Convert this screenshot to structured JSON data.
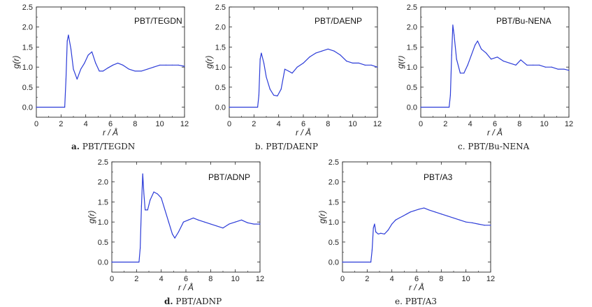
{
  "chart_data": [
    {
      "type": "line",
      "panel_title": "PBT/TEGDN",
      "caption_letter": "a.",
      "caption_text": "PBT/TEGDN",
      "xlabel": "r / Å",
      "ylabel": "g(r)",
      "xlim": [
        0,
        12
      ],
      "ylim": [
        -0.25,
        2.5
      ],
      "xticks": [
        "0",
        "2",
        "4",
        "6",
        "8",
        "10",
        "12"
      ],
      "yticks": [
        "0.0",
        "0.5",
        "1.0",
        "1.5",
        "2.0",
        "2.5"
      ],
      "color": "#2b3bd8",
      "x": [
        0,
        2.3,
        2.4,
        2.5,
        2.6,
        2.8,
        3.0,
        3.3,
        3.6,
        3.9,
        4.2,
        4.5,
        4.8,
        5.1,
        5.4,
        5.8,
        6.2,
        6.6,
        7.0,
        7.5,
        8.0,
        8.5,
        9.0,
        9.5,
        10.0,
        10.5,
        11.0,
        11.5,
        12.0
      ],
      "y": [
        0,
        0,
        0.7,
        1.65,
        1.8,
        1.45,
        0.95,
        0.7,
        0.95,
        1.1,
        1.3,
        1.38,
        1.1,
        0.9,
        0.9,
        0.98,
        1.05,
        1.1,
        1.05,
        0.95,
        0.9,
        0.9,
        0.95,
        1.0,
        1.05,
        1.05,
        1.05,
        1.05,
        1.02
      ]
    },
    {
      "type": "line",
      "panel_title": "PBT/DAENP",
      "caption_letter": "b.",
      "caption_text": "PBT/DAENP",
      "xlabel": "r / Å",
      "ylabel": "g(r)",
      "xlim": [
        0,
        12
      ],
      "ylim": [
        -0.25,
        2.5
      ],
      "xticks": [
        "0",
        "2",
        "4",
        "6",
        "8",
        "10",
        "12"
      ],
      "yticks": [
        "0.0",
        "0.5",
        "1.0",
        "1.5",
        "2.0",
        "2.5"
      ],
      "color": "#2b3bd8",
      "x": [
        0,
        2.3,
        2.4,
        2.5,
        2.6,
        2.8,
        3.0,
        3.3,
        3.6,
        3.9,
        4.2,
        4.5,
        4.8,
        5.1,
        5.5,
        6.0,
        6.5,
        7.0,
        7.5,
        8.0,
        8.5,
        9.0,
        9.5,
        10.0,
        10.5,
        11.0,
        11.5,
        12.0
      ],
      "y": [
        0,
        0,
        0.3,
        1.2,
        1.35,
        1.1,
        0.75,
        0.45,
        0.3,
        0.28,
        0.45,
        0.95,
        0.9,
        0.85,
        1.0,
        1.1,
        1.25,
        1.35,
        1.4,
        1.45,
        1.4,
        1.3,
        1.15,
        1.1,
        1.1,
        1.05,
        1.05,
        1.0
      ]
    },
    {
      "type": "line",
      "panel_title": "PBT/Bu-NENA",
      "caption_letter": "c.",
      "caption_text": "PBT/Bu-NENA",
      "xlabel": "r / Å",
      "ylabel": "g(r)",
      "xlim": [
        0,
        12
      ],
      "ylim": [
        -0.25,
        2.5
      ],
      "xticks": [
        "0",
        "2",
        "4",
        "6",
        "8",
        "10",
        "12"
      ],
      "yticks": [
        "0.0",
        "0.5",
        "1.0",
        "1.5",
        "2.0",
        "2.5"
      ],
      "color": "#2b3bd8",
      "x": [
        0,
        2.3,
        2.4,
        2.5,
        2.6,
        2.7,
        2.9,
        3.2,
        3.5,
        3.8,
        4.1,
        4.4,
        4.6,
        4.9,
        5.3,
        5.7,
        6.2,
        6.7,
        7.2,
        7.7,
        8.1,
        8.6,
        9.1,
        9.6,
        10.1,
        10.6,
        11.1,
        11.6,
        12.0
      ],
      "y": [
        0,
        0,
        0.3,
        1.3,
        2.05,
        1.8,
        1.2,
        0.85,
        0.85,
        1.05,
        1.3,
        1.55,
        1.65,
        1.45,
        1.35,
        1.2,
        1.25,
        1.15,
        1.1,
        1.05,
        1.18,
        1.05,
        1.05,
        1.05,
        1.0,
        1.0,
        0.95,
        0.95,
        0.92
      ]
    },
    {
      "type": "line",
      "panel_title": "PBT/ADNP",
      "caption_letter": "d.",
      "caption_text": "PBT/ADNP",
      "xlabel": "r / Å",
      "ylabel": "g(r)",
      "xlim": [
        0,
        12
      ],
      "ylim": [
        -0.25,
        2.5
      ],
      "xticks": [
        "0",
        "2",
        "4",
        "6",
        "8",
        "10",
        "12"
      ],
      "yticks": [
        "0.0",
        "0.5",
        "1.0",
        "1.5",
        "2.0",
        "2.5"
      ],
      "color": "#2b3bd8",
      "x": [
        0,
        2.2,
        2.3,
        2.4,
        2.5,
        2.6,
        2.7,
        2.9,
        3.1,
        3.4,
        3.7,
        4.0,
        4.3,
        4.6,
        4.9,
        5.1,
        5.4,
        5.8,
        6.2,
        6.6,
        7.0,
        7.5,
        8.0,
        8.5,
        9.0,
        9.5,
        10.0,
        10.5,
        11.0,
        11.5,
        12.0
      ],
      "y": [
        0,
        0,
        0.35,
        1.4,
        2.2,
        1.7,
        1.3,
        1.3,
        1.55,
        1.75,
        1.7,
        1.6,
        1.3,
        1.0,
        0.7,
        0.6,
        0.75,
        1.0,
        1.05,
        1.1,
        1.05,
        1.0,
        0.95,
        0.9,
        0.85,
        0.95,
        1.0,
        1.05,
        0.98,
        0.95,
        0.95
      ]
    },
    {
      "type": "line",
      "panel_title": "PBT/A3",
      "caption_letter": "e.",
      "caption_text": "PBT/A3",
      "xlabel": "r / Å",
      "ylabel": "g(r)",
      "xlim": [
        0,
        12
      ],
      "ylim": [
        -0.25,
        2.5
      ],
      "xticks": [
        "0",
        "2",
        "4",
        "6",
        "8",
        "10",
        "12"
      ],
      "yticks": [
        "0.0",
        "0.5",
        "1.0",
        "1.5",
        "2.0",
        "2.5"
      ],
      "color": "#2b3bd8",
      "x": [
        0,
        2.3,
        2.4,
        2.5,
        2.6,
        2.7,
        2.9,
        3.1,
        3.4,
        3.7,
        4.0,
        4.3,
        4.6,
        4.9,
        5.2,
        5.5,
        5.8,
        6.2,
        6.6,
        7.0,
        7.5,
        8.0,
        8.5,
        9.0,
        9.5,
        10.0,
        10.5,
        11.0,
        11.5,
        12.0
      ],
      "y": [
        0,
        0,
        0.3,
        0.85,
        0.95,
        0.75,
        0.7,
        0.72,
        0.7,
        0.8,
        0.95,
        1.05,
        1.1,
        1.15,
        1.2,
        1.25,
        1.28,
        1.32,
        1.35,
        1.3,
        1.25,
        1.2,
        1.15,
        1.1,
        1.05,
        1.0,
        0.98,
        0.95,
        0.92,
        0.92
      ]
    }
  ]
}
